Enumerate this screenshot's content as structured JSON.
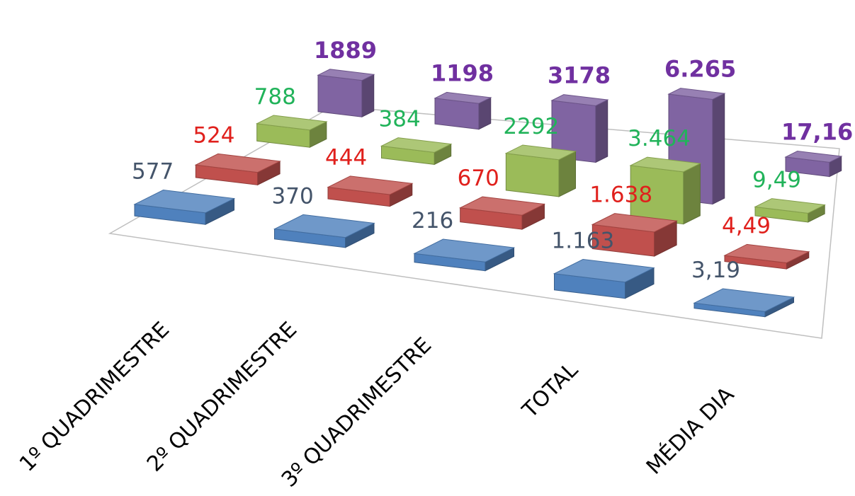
{
  "chart_data": {
    "type": "bar",
    "categories": [
      "1º QUADRIMESTRE",
      "2º QUADRIMESTRE",
      "3º QUADRIMESTRE",
      "TOTAL",
      "MÉDIA DIA"
    ],
    "series": [
      {
        "color": "#4f81bd",
        "label_color": "#44546a",
        "values": [
          577,
          370,
          216,
          1163,
          3.19
        ],
        "labels": [
          "577",
          "370",
          "216",
          "1.163",
          "3,19"
        ]
      },
      {
        "color": "#c0504d",
        "label_color": "#e0201c",
        "values": [
          524,
          444,
          670,
          1638,
          4.49
        ],
        "labels": [
          "524",
          "444",
          "670",
          "1.638",
          "4,49"
        ]
      },
      {
        "color": "#9bbb59",
        "label_color": "#21b35a",
        "values": [
          788,
          384,
          2292,
          3464,
          9.49
        ],
        "labels": [
          "788",
          "384",
          "2292",
          "3.464",
          "9,49"
        ]
      },
      {
        "color": "#8064a2",
        "label_color": "#7030a0",
        "values": [
          1889,
          1198,
          3178,
          6265,
          17.16
        ],
        "labels": [
          "1889",
          "1198",
          "3178",
          "6.265",
          "17,16"
        ]
      }
    ],
    "grid": false,
    "legend": "none"
  }
}
